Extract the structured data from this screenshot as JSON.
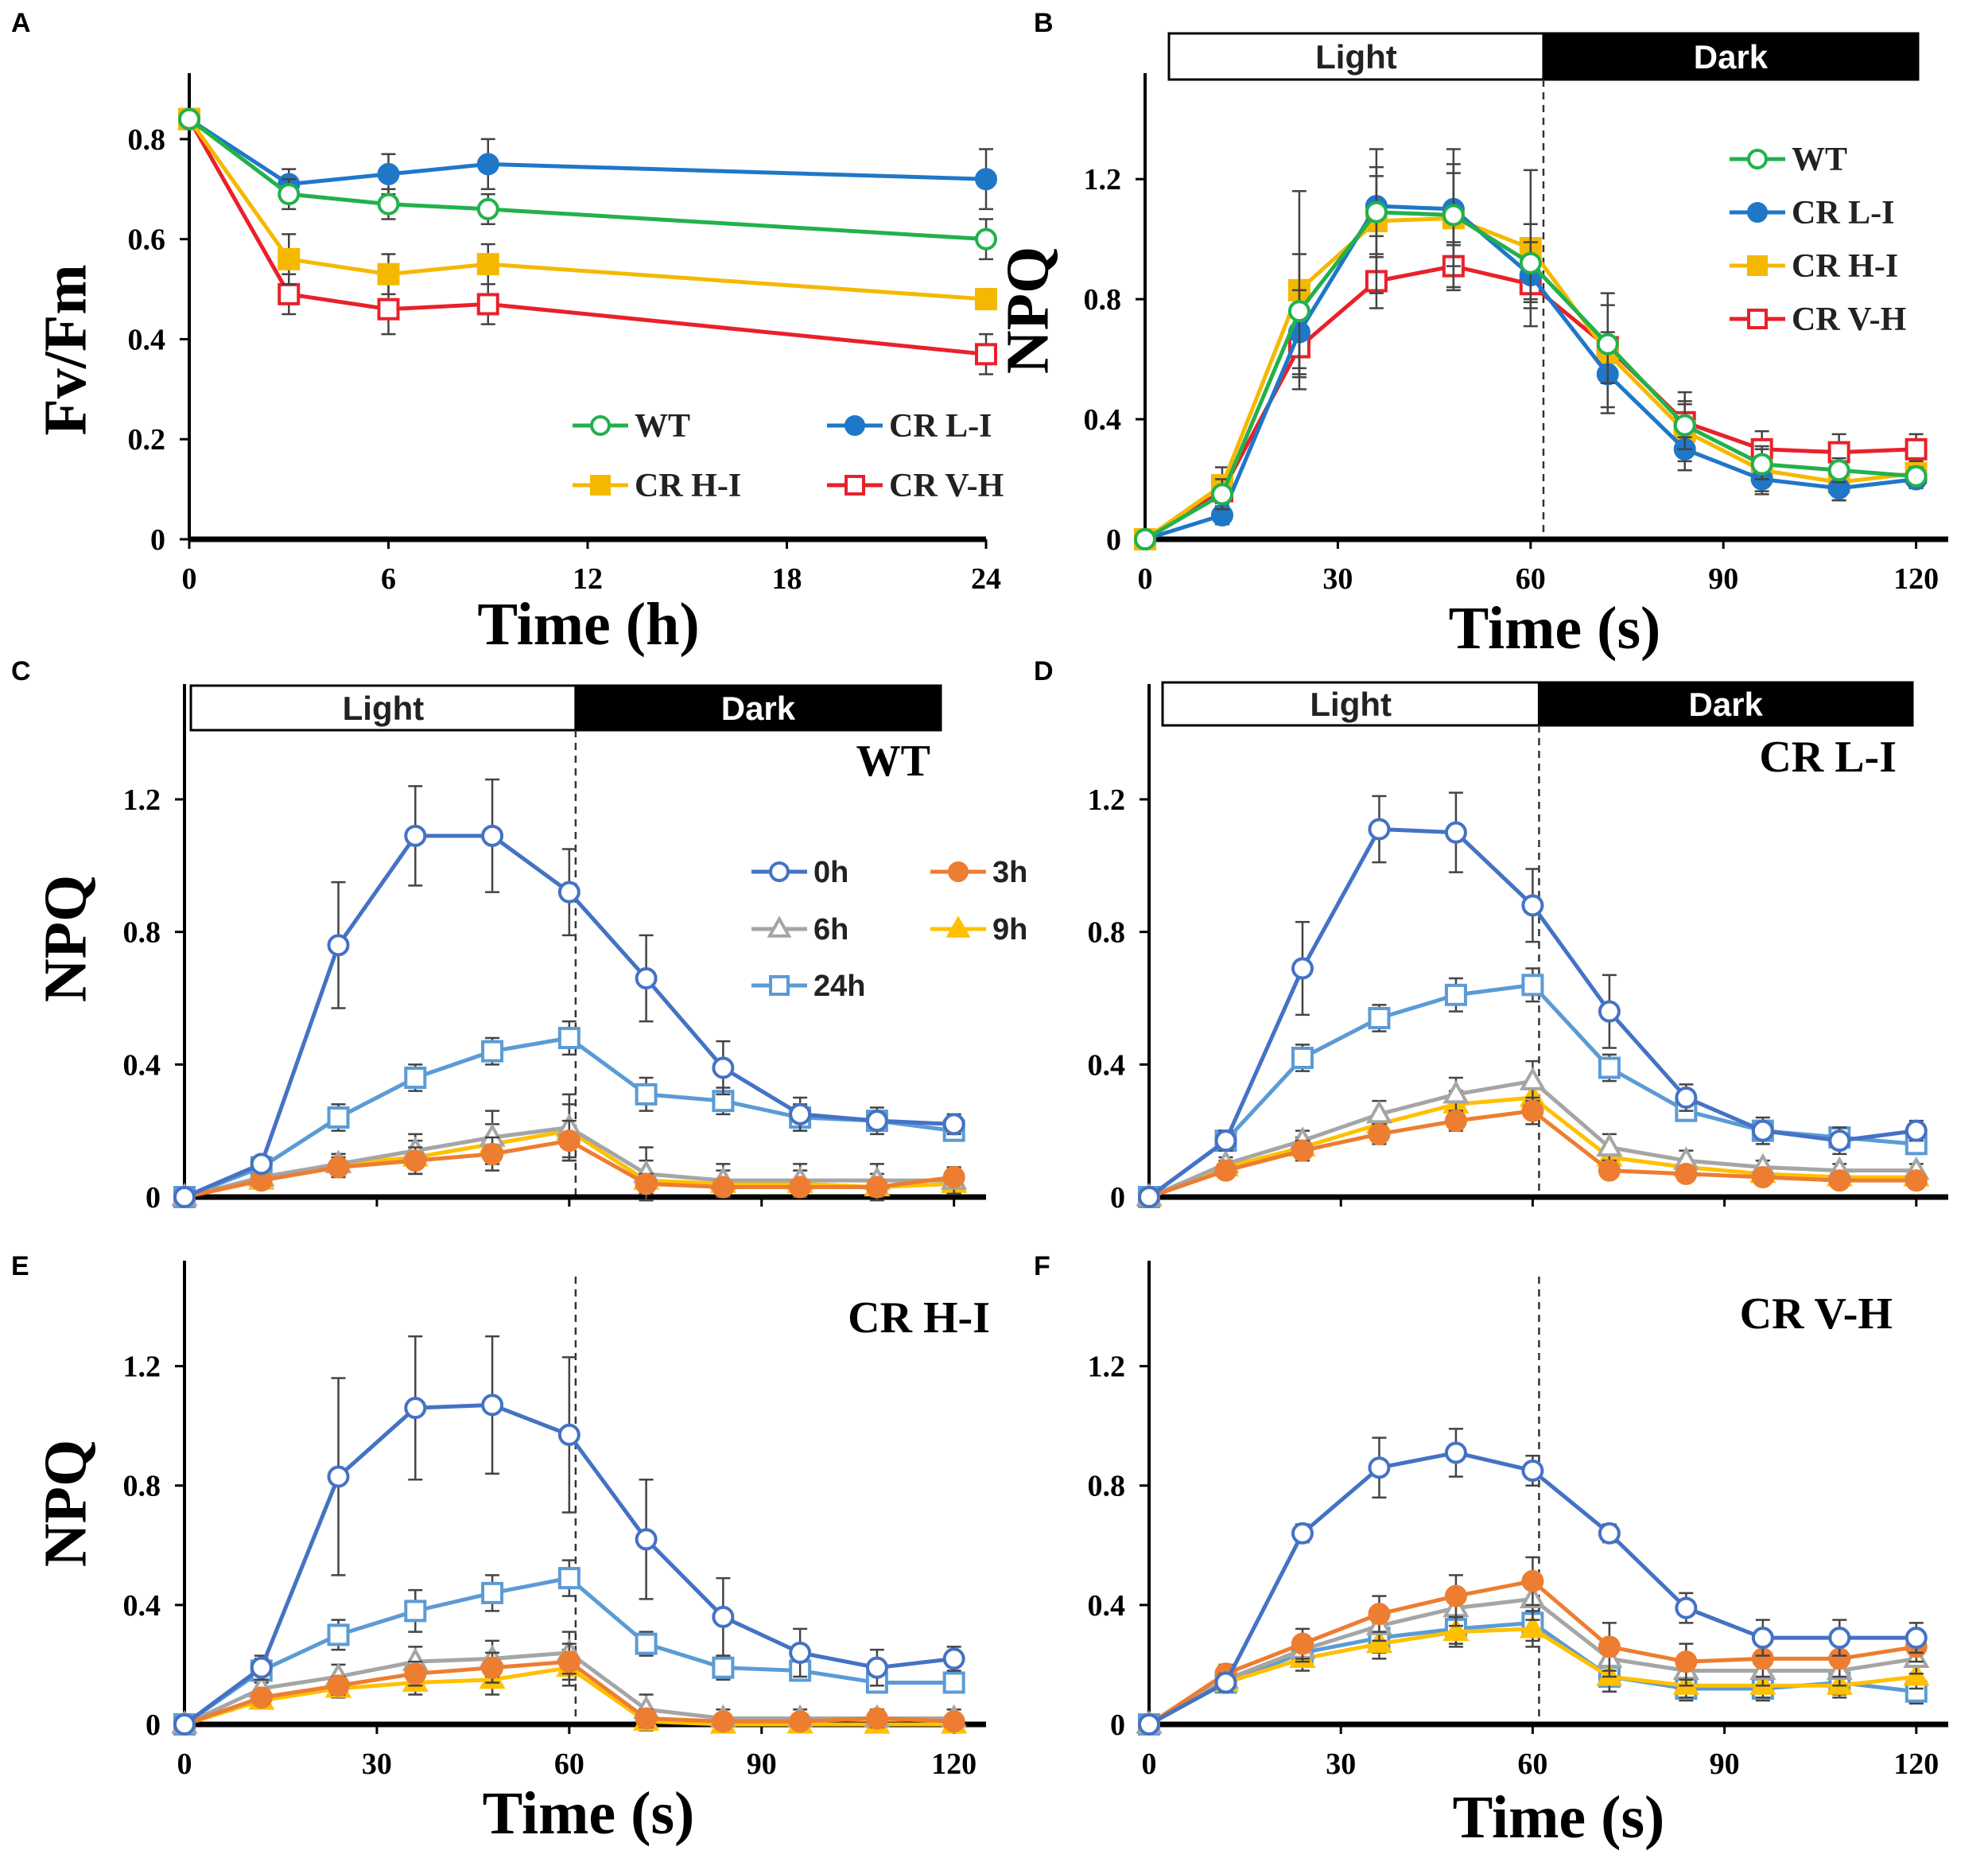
{
  "colors": {
    "WT": "#22b14c",
    "CR L-I": "#1f77c8",
    "CR H-I": "#f5b800",
    "CR V-H": "#e8212a",
    "0h": "#4472c4",
    "3h": "#ed7d31",
    "6h": "#a5a5a5",
    "9h": "#ffc000",
    "24h": "#5b9bd5"
  },
  "chart_data": [
    {
      "panel": "A",
      "type": "line",
      "title": "",
      "xlabel": "Time (h)",
      "ylabel": "Fv/Fm",
      "xlim": [
        0,
        24
      ],
      "ylim": [
        0,
        0.9
      ],
      "xticks": [
        0,
        6,
        12,
        18,
        24
      ],
      "xtick_labels": [
        "0",
        "6",
        "12",
        "18",
        "24"
      ],
      "yticks": [
        0,
        0.2,
        0.4,
        0.6,
        0.8
      ],
      "ytick_labels": [
        "0",
        "0.2",
        "0.4",
        "0.6",
        "0.8"
      ],
      "legend": "bottom-right",
      "legend_cols": 2,
      "legend_text_labels": true,
      "x": [
        0,
        3,
        6,
        9,
        24
      ],
      "series": [
        {
          "name": "WT",
          "marker": "circle-open",
          "values": [
            0.84,
            0.69,
            0.67,
            0.66,
            0.6
          ],
          "err": [
            0.01,
            0.03,
            0.03,
            0.03,
            0.04
          ]
        },
        {
          "name": "CR L-I",
          "marker": "circle-filled",
          "values": [
            0.84,
            0.71,
            0.73,
            0.75,
            0.72
          ],
          "err": [
            0.01,
            0.03,
            0.04,
            0.05,
            0.06
          ]
        },
        {
          "name": "CR H-I",
          "marker": "square-filled",
          "values": [
            0.84,
            0.56,
            0.53,
            0.55,
            0.48
          ],
          "err": [
            0.01,
            0.05,
            0.04,
            0.04,
            0.02
          ]
        },
        {
          "name": "CR V-H",
          "marker": "square-open",
          "values": [
            0.84,
            0.49,
            0.46,
            0.47,
            0.37
          ],
          "err": [
            0.01,
            0.04,
            0.05,
            0.04,
            0.04
          ]
        }
      ]
    },
    {
      "panel": "B",
      "type": "line",
      "title": "",
      "xlabel": "Time (s)",
      "ylabel": "NPQ",
      "xlim": [
        0,
        125
      ],
      "ylim": [
        0,
        1.5
      ],
      "xticks": [
        0,
        30,
        60,
        90,
        120
      ],
      "xtick_labels": [
        "0",
        "30",
        "60",
        "90",
        "120"
      ],
      "yticks": [
        0,
        0.4,
        0.8,
        1.2
      ],
      "ytick_labels": [
        "0",
        "0.4",
        "0.8",
        "1.2"
      ],
      "phase_labels": [
        "Light",
        "Dark"
      ],
      "divider_x": 62,
      "legend": "top-right",
      "legend_cols": 1,
      "legend_text_labels": true,
      "x": [
        0,
        12,
        24,
        36,
        48,
        60,
        72,
        84,
        96,
        108,
        120
      ],
      "series": [
        {
          "name": "WT",
          "marker": "circle-open",
          "values": [
            0,
            0.15,
            0.76,
            1.09,
            1.08,
            0.92,
            0.65,
            0.38,
            0.25,
            0.23,
            0.21
          ],
          "err": [
            0,
            0.05,
            0.19,
            0.15,
            0.17,
            0.13,
            0.13,
            0.08,
            0.05,
            0.04,
            0.03
          ]
        },
        {
          "name": "CR L-I",
          "marker": "circle-filled",
          "values": [
            0,
            0.08,
            0.69,
            1.11,
            1.1,
            0.88,
            0.55,
            0.3,
            0.2,
            0.17,
            0.2
          ],
          "err": [
            0,
            0.03,
            0.14,
            0.1,
            0.12,
            0.11,
            0.11,
            0.04,
            0.04,
            0.04,
            0.03
          ]
        },
        {
          "name": "CR H-I",
          "marker": "square-filled",
          "values": [
            0,
            0.18,
            0.83,
            1.06,
            1.07,
            0.97,
            0.62,
            0.36,
            0.23,
            0.19,
            0.22
          ],
          "err": [
            0,
            0.06,
            0.33,
            0.24,
            0.23,
            0.26,
            0.2,
            0.13,
            0.08,
            0.06,
            0.04
          ]
        },
        {
          "name": "CR V-H",
          "marker": "square-open",
          "values": [
            0,
            0.16,
            0.64,
            0.86,
            0.91,
            0.85,
            0.64,
            0.39,
            0.3,
            0.29,
            0.3
          ],
          "err": [
            0,
            0.05,
            0.1,
            0.09,
            0.08,
            0.05,
            0.05,
            0.06,
            0.06,
            0.06,
            0.05
          ]
        }
      ]
    },
    {
      "panel": "C",
      "type": "line",
      "title": "WT",
      "xlabel": "",
      "ylabel": "NPQ",
      "xlim": [
        0,
        125
      ],
      "ylim": [
        0,
        1.5
      ],
      "xticks": [
        0,
        30,
        60,
        90,
        120
      ],
      "xtick_labels": [],
      "yticks": [
        0,
        0.4,
        0.8,
        1.2
      ],
      "ytick_labels": [
        "0",
        "0.4",
        "0.8",
        "1.2"
      ],
      "phase_labels": [
        "Light",
        "Dark"
      ],
      "divider_x": 61,
      "legend": "upper-right",
      "legend_cols": 2,
      "legend_text_labels": true,
      "x": [
        0,
        12,
        24,
        36,
        48,
        60,
        72,
        84,
        96,
        108,
        120
      ],
      "series": [
        {
          "name": "0h",
          "marker": "circle-open",
          "values": [
            0,
            0.1,
            0.76,
            1.09,
            1.09,
            0.92,
            0.66,
            0.39,
            0.25,
            0.23,
            0.22
          ],
          "err": [
            0,
            0.02,
            0.19,
            0.15,
            0.17,
            0.13,
            0.13,
            0.08,
            0.05,
            0.04,
            0.03
          ]
        },
        {
          "name": "3h",
          "marker": "circle-filled",
          "values": [
            0,
            0.05,
            0.09,
            0.11,
            0.13,
            0.17,
            0.04,
            0.03,
            0.03,
            0.03,
            0.06
          ],
          "err": [
            0,
            0.02,
            0.03,
            0.04,
            0.05,
            0.06,
            0.03,
            0.02,
            0.02,
            0.02,
            0.02
          ]
        },
        {
          "name": "6h",
          "marker": "triangle-open",
          "values": [
            0,
            0.06,
            0.1,
            0.14,
            0.18,
            0.21,
            0.07,
            0.05,
            0.05,
            0.05,
            0.05
          ],
          "err": [
            0,
            0.02,
            0.03,
            0.05,
            0.08,
            0.1,
            0.08,
            0.05,
            0.05,
            0.05,
            0.04
          ]
        },
        {
          "name": "9h",
          "marker": "triangle-filled",
          "values": [
            0,
            0.05,
            0.1,
            0.12,
            0.16,
            0.2,
            0.05,
            0.04,
            0.04,
            0.03,
            0.04
          ],
          "err": [
            0,
            0.02,
            0.03,
            0.05,
            0.06,
            0.08,
            0.06,
            0.04,
            0.04,
            0.04,
            0.03
          ]
        },
        {
          "name": "24h",
          "marker": "square-open",
          "values": [
            0,
            0.09,
            0.24,
            0.36,
            0.44,
            0.48,
            0.31,
            0.29,
            0.24,
            0.23,
            0.2
          ],
          "err": [
            0,
            0.02,
            0.04,
            0.04,
            0.04,
            0.05,
            0.05,
            0.04,
            0.04,
            0.03,
            0.03
          ]
        }
      ]
    },
    {
      "panel": "D",
      "type": "line",
      "title": "CR L-I",
      "xlabel": "",
      "ylabel": "",
      "xlim": [
        0,
        125
      ],
      "ylim": [
        0,
        1.5
      ],
      "xticks": [
        0,
        30,
        60,
        90,
        120
      ],
      "xtick_labels": [],
      "yticks": [
        0,
        0.4,
        0.8,
        1.2
      ],
      "ytick_labels": [
        "0",
        "0.4",
        "0.8",
        "1.2"
      ],
      "phase_labels": [
        "Light",
        "Dark"
      ],
      "divider_x": 61,
      "legend": "none",
      "legend_cols": 0,
      "legend_text_labels": false,
      "x": [
        0,
        12,
        24,
        36,
        48,
        60,
        72,
        84,
        96,
        108,
        120
      ],
      "series": [
        {
          "name": "0h",
          "marker": "circle-open",
          "values": [
            0,
            0.17,
            0.69,
            1.11,
            1.1,
            0.88,
            0.56,
            0.3,
            0.2,
            0.17,
            0.2
          ],
          "err": [
            0,
            0.03,
            0.14,
            0.1,
            0.12,
            0.11,
            0.11,
            0.04,
            0.04,
            0.04,
            0.03
          ]
        },
        {
          "name": "3h",
          "marker": "circle-filled",
          "values": [
            0,
            0.08,
            0.14,
            0.19,
            0.23,
            0.26,
            0.08,
            0.07,
            0.06,
            0.05,
            0.05
          ],
          "err": [
            0,
            0.02,
            0.03,
            0.03,
            0.03,
            0.04,
            0.02,
            0.02,
            0.02,
            0.02,
            0.02
          ]
        },
        {
          "name": "6h",
          "marker": "triangle-open",
          "values": [
            0,
            0.1,
            0.17,
            0.25,
            0.31,
            0.35,
            0.15,
            0.11,
            0.09,
            0.08,
            0.08
          ],
          "err": [
            0,
            0.02,
            0.03,
            0.04,
            0.05,
            0.06,
            0.04,
            0.03,
            0.02,
            0.02,
            0.02
          ]
        },
        {
          "name": "9h",
          "marker": "triangle-filled",
          "values": [
            0,
            0.09,
            0.15,
            0.22,
            0.28,
            0.3,
            0.12,
            0.09,
            0.07,
            0.06,
            0.06
          ],
          "err": [
            0,
            0.02,
            0.03,
            0.03,
            0.04,
            0.05,
            0.03,
            0.02,
            0.02,
            0.02,
            0.02
          ]
        },
        {
          "name": "24h",
          "marker": "square-open",
          "values": [
            0,
            0.17,
            0.42,
            0.54,
            0.61,
            0.64,
            0.39,
            0.26,
            0.2,
            0.18,
            0.16
          ],
          "err": [
            0,
            0.03,
            0.04,
            0.04,
            0.05,
            0.05,
            0.04,
            0.03,
            0.03,
            0.03,
            0.03
          ]
        }
      ]
    },
    {
      "panel": "E",
      "type": "line",
      "title": "CR H-I",
      "xlabel": "Time (s)",
      "ylabel": "NPQ",
      "xlim": [
        0,
        125
      ],
      "ylim": [
        0,
        1.5
      ],
      "xticks": [
        0,
        30,
        60,
        90,
        120
      ],
      "xtick_labels": [
        "0",
        "30",
        "60",
        "90",
        "120"
      ],
      "yticks": [
        0,
        0.4,
        0.8,
        1.2
      ],
      "ytick_labels": [
        "0",
        "0.4",
        "0.8",
        "1.2"
      ],
      "phase_labels": [],
      "divider_x": 61,
      "legend": "none",
      "legend_cols": 0,
      "legend_text_labels": false,
      "x": [
        0,
        12,
        24,
        36,
        48,
        60,
        72,
        84,
        96,
        108,
        120
      ],
      "series": [
        {
          "name": "0h",
          "marker": "circle-open",
          "values": [
            0,
            0.19,
            0.83,
            1.06,
            1.07,
            0.97,
            0.62,
            0.36,
            0.24,
            0.19,
            0.22
          ],
          "err": [
            0,
            0.04,
            0.33,
            0.24,
            0.23,
            0.26,
            0.2,
            0.13,
            0.08,
            0.06,
            0.04
          ]
        },
        {
          "name": "3h",
          "marker": "circle-filled",
          "values": [
            0,
            0.09,
            0.13,
            0.17,
            0.19,
            0.21,
            0.02,
            0.01,
            0.01,
            0.02,
            0.01
          ],
          "err": [
            0,
            0.02,
            0.03,
            0.04,
            0.05,
            0.06,
            0.03,
            0.02,
            0.02,
            0.02,
            0.02
          ]
        },
        {
          "name": "6h",
          "marker": "triangle-open",
          "values": [
            0,
            0.12,
            0.16,
            0.21,
            0.22,
            0.24,
            0.05,
            0.02,
            0.02,
            0.02,
            0.02
          ],
          "err": [
            0,
            0.03,
            0.04,
            0.05,
            0.06,
            0.07,
            0.05,
            0.03,
            0.03,
            0.03,
            0.03
          ]
        },
        {
          "name": "9h",
          "marker": "triangle-filled",
          "values": [
            0,
            0.08,
            0.12,
            0.14,
            0.15,
            0.19,
            0.01,
            0.0,
            0.0,
            0.0,
            0.0
          ],
          "err": [
            0,
            0.02,
            0.03,
            0.04,
            0.05,
            0.06,
            0.03,
            0.02,
            0.02,
            0.02,
            0.02
          ]
        },
        {
          "name": "24h",
          "marker": "square-open",
          "values": [
            0,
            0.18,
            0.3,
            0.38,
            0.44,
            0.49,
            0.27,
            0.19,
            0.18,
            0.14,
            0.14
          ],
          "err": [
            0,
            0.04,
            0.05,
            0.07,
            0.06,
            0.06,
            0.04,
            0.04,
            0.03,
            0.03,
            0.03
          ]
        }
      ]
    },
    {
      "panel": "F",
      "type": "line",
      "title": "CR V-H",
      "xlabel": "Time (s)",
      "ylabel": "",
      "xlim": [
        0,
        125
      ],
      "ylim": [
        0,
        1.5
      ],
      "xticks": [
        0,
        30,
        60,
        90,
        120
      ],
      "xtick_labels": [
        "0",
        "30",
        "60",
        "90",
        "120"
      ],
      "yticks": [
        0,
        0.4,
        0.8,
        1.2
      ],
      "ytick_labels": [
        "0",
        "0.4",
        "0.8",
        "1.2"
      ],
      "phase_labels": [],
      "divider_x": 61,
      "legend": "none",
      "legend_cols": 0,
      "legend_text_labels": false,
      "x": [
        0,
        12,
        24,
        36,
        48,
        60,
        72,
        84,
        96,
        108,
        120
      ],
      "series": [
        {
          "name": "0h",
          "marker": "circle-open",
          "values": [
            0,
            0.14,
            0.64,
            0.86,
            0.91,
            0.85,
            0.64,
            0.39,
            0.29,
            0.29,
            0.29
          ],
          "err": [
            0,
            0.03,
            0.03,
            0.1,
            0.08,
            0.05,
            0.03,
            0.05,
            0.06,
            0.06,
            0.05
          ]
        },
        {
          "name": "3h",
          "marker": "circle-filled",
          "values": [
            0,
            0.17,
            0.27,
            0.37,
            0.43,
            0.48,
            0.26,
            0.21,
            0.22,
            0.22,
            0.26
          ],
          "err": [
            0,
            0.03,
            0.05,
            0.06,
            0.07,
            0.08,
            0.08,
            0.06,
            0.06,
            0.06,
            0.05
          ]
        },
        {
          "name": "6h",
          "marker": "triangle-open",
          "values": [
            0,
            0.15,
            0.25,
            0.33,
            0.39,
            0.42,
            0.22,
            0.18,
            0.18,
            0.18,
            0.22
          ],
          "err": [
            0,
            0.03,
            0.04,
            0.05,
            0.06,
            0.07,
            0.06,
            0.05,
            0.05,
            0.05,
            0.05
          ]
        },
        {
          "name": "9h",
          "marker": "triangle-filled",
          "values": [
            0,
            0.14,
            0.22,
            0.27,
            0.31,
            0.32,
            0.16,
            0.13,
            0.13,
            0.13,
            0.16
          ],
          "err": [
            0,
            0.03,
            0.04,
            0.05,
            0.05,
            0.06,
            0.05,
            0.04,
            0.04,
            0.04,
            0.04
          ]
        },
        {
          "name": "24h",
          "marker": "square-open",
          "values": [
            0,
            0.14,
            0.24,
            0.29,
            0.32,
            0.34,
            0.16,
            0.12,
            0.12,
            0.14,
            0.11
          ],
          "err": [
            0,
            0.03,
            0.04,
            0.05,
            0.05,
            0.06,
            0.05,
            0.04,
            0.04,
            0.04,
            0.04
          ]
        }
      ]
    }
  ]
}
